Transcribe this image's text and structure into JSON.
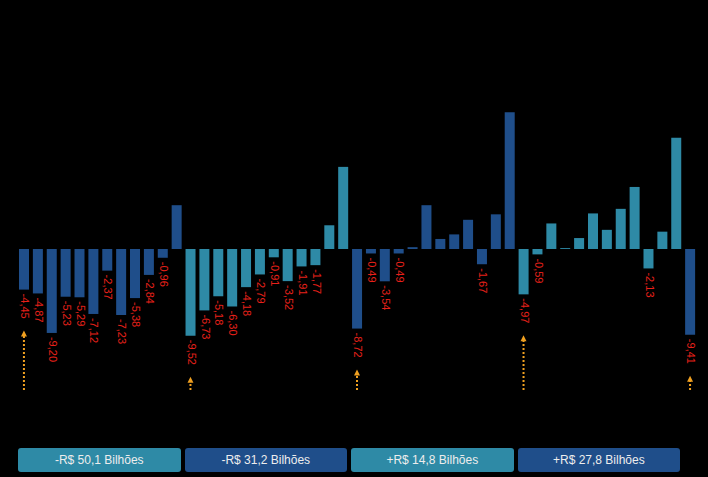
{
  "chart_data": {
    "type": "bar",
    "categories": [
      null,
      null,
      null,
      null,
      null,
      null,
      null,
      null,
      null,
      null,
      null,
      null,
      null,
      null,
      null,
      null,
      null,
      null,
      null,
      null,
      null,
      null,
      null,
      null,
      null,
      null,
      null,
      null,
      null,
      null,
      null,
      null,
      null,
      null,
      null,
      null,
      null,
      null,
      null,
      null,
      null,
      null,
      null,
      null,
      null,
      null,
      null,
      null,
      null
    ],
    "values": [
      -4.45,
      -4.87,
      -9.2,
      -5.23,
      -5.29,
      -7.12,
      -2.37,
      -7.23,
      -5.38,
      -2.84,
      -0.96,
      4.8,
      -9.52,
      -6.73,
      -5.18,
      -6.3,
      -4.18,
      -2.79,
      -0.91,
      -3.52,
      -1.91,
      -1.77,
      2.6,
      9.0,
      -8.72,
      -0.49,
      -3.54,
      -0.49,
      0.2,
      4.8,
      1.1,
      1.6,
      3.2,
      -1.67,
      3.8,
      15.0,
      -4.97,
      -0.59,
      2.8,
      0.1,
      1.2,
      3.9,
      2.1,
      4.4,
      6.8,
      -2.13,
      1.9,
      12.2,
      -9.41
    ],
    "value_labels": [
      "-4,45",
      "-4,87",
      "-9,20",
      "-5,23",
      "-5,29",
      "-7,12",
      "-2,37",
      "-7,23",
      "-5,38",
      "-2,84",
      "-0,96",
      null,
      "-9,52",
      "-6,73",
      "-5,18",
      "-6,30",
      "-4,18",
      "-2,79",
      "-0,91",
      "-3,52",
      "-1,91",
      "-1,77",
      null,
      null,
      "-8,72",
      "-0,49",
      "-3,54",
      "-0,49",
      null,
      null,
      null,
      null,
      null,
      "-1,67",
      null,
      null,
      "-4,97",
      "-0,59",
      null,
      null,
      null,
      null,
      null,
      null,
      null,
      "-2,13",
      null,
      null,
      "-9,41"
    ],
    "colors": [
      "#1F4E8A",
      "#1F4E8A",
      "#1F4E8A",
      "#1F4E8A",
      "#1F4E8A",
      "#1F4E8A",
      "#1F4E8A",
      "#1F4E8A",
      "#1F4E8A",
      "#1F4E8A",
      "#1F4E8A",
      "#1F4E8A",
      "#2E8AA6",
      "#2E8AA6",
      "#2E8AA6",
      "#2E8AA6",
      "#2E8AA6",
      "#2E8AA6",
      "#2E8AA6",
      "#2E8AA6",
      "#2E8AA6",
      "#2E8AA6",
      "#2E8AA6",
      "#2E8AA6",
      "#1F4E8A",
      "#1F4E8A",
      "#1F4E8A",
      "#1F4E8A",
      "#1F4E8A",
      "#1F4E8A",
      "#1F4E8A",
      "#1F4E8A",
      "#1F4E8A",
      "#1F4E8A",
      "#1F4E8A",
      "#1F4E8A",
      "#2E8AA6",
      "#2E8AA6",
      "#2E8AA6",
      "#2E8AA6",
      "#2E8AA6",
      "#2E8AA6",
      "#2E8AA6",
      "#2E8AA6",
      "#2E8AA6",
      "#2E8AA6",
      "#2E8AA6",
      "#2E8AA6",
      "#1F4E8A"
    ],
    "ylim": [
      -16,
      16
    ],
    "data_labels": true,
    "tick_labels": false,
    "annotations": [
      {
        "text": "-R$ 50,1 Bilhões",
        "from": 0,
        "to": 11
      },
      {
        "text": "-R$ 31,2 Bilhões",
        "from": 12,
        "to": 23
      },
      {
        "text": "+R$ 14,8 Bilhões",
        "from": 24,
        "to": 35
      },
      {
        "text": "+R$ 27,8 Bilhões",
        "from": 36,
        "to": 47
      }
    ]
  }
}
